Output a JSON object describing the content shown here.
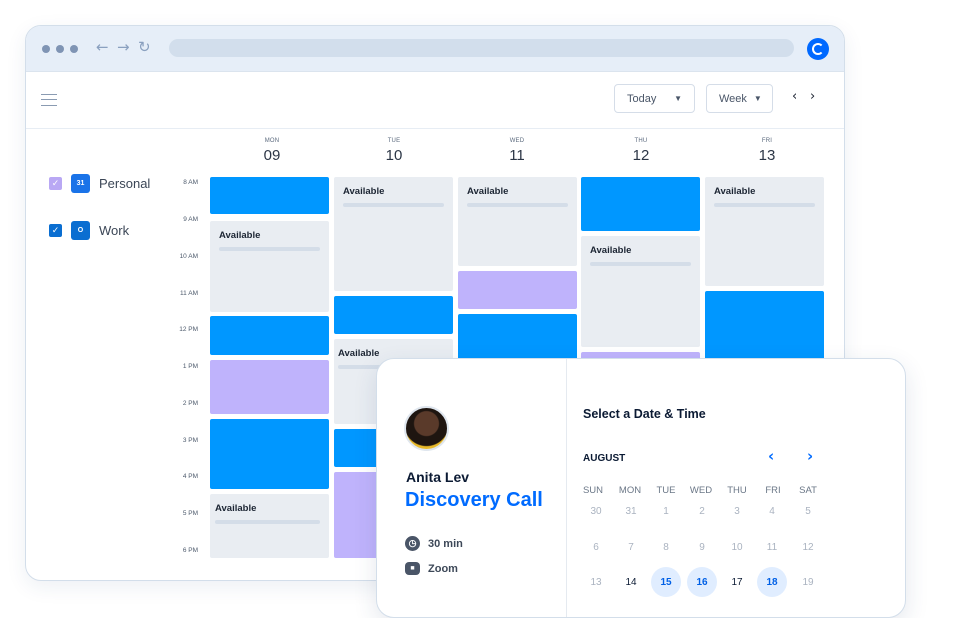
{
  "toolbar": {
    "today_label": "Today",
    "week_label": "Week",
    "prev": "‹",
    "next": "›"
  },
  "days": [
    {
      "dow": "MON",
      "num": "09"
    },
    {
      "dow": "TUE",
      "num": "10"
    },
    {
      "dow": "WED",
      "num": "11"
    },
    {
      "dow": "THU",
      "num": "12"
    },
    {
      "dow": "FRI",
      "num": "13"
    }
  ],
  "calendars": [
    {
      "name": "Personal",
      "icon_text": "31",
      "icon": "google-calendar-icon",
      "color": "#b9a8f4",
      "checked": true
    },
    {
      "name": "Work",
      "icon_text": "O",
      "icon": "outlook-icon",
      "color": "#0a6ed1",
      "checked": true
    }
  ],
  "hours": [
    "8 AM",
    "9 AM",
    "10 AM",
    "11 AM",
    "12 PM",
    "1 PM",
    "2 PM",
    "3 PM",
    "4 PM",
    "5 PM",
    "6 PM"
  ],
  "available_label": "Available",
  "booking": {
    "host": "Anita Lev",
    "event": "Discovery Call",
    "duration": "30 min",
    "location": "Zoom",
    "select_title": "Select a Date & Time",
    "month": "AUGUST",
    "weekdays": [
      "SUN",
      "MON",
      "TUE",
      "WED",
      "THU",
      "FRI",
      "SAT"
    ],
    "weeks": [
      [
        "30",
        "31",
        "1",
        "2",
        "3",
        "4",
        "5"
      ],
      [
        "6",
        "7",
        "8",
        "9",
        "10",
        "11",
        "12"
      ],
      [
        "13",
        "14",
        "15",
        "16",
        "17",
        "18",
        "19"
      ]
    ],
    "active_dates": [
      "14",
      "15",
      "16",
      "17",
      "18"
    ],
    "available_dates": [
      "15",
      "16",
      "18"
    ]
  },
  "colors": {
    "blue_event": "#0097ff",
    "purple_event": "#bfb3fc",
    "available": "#e9edf2",
    "accent": "#006bff"
  }
}
